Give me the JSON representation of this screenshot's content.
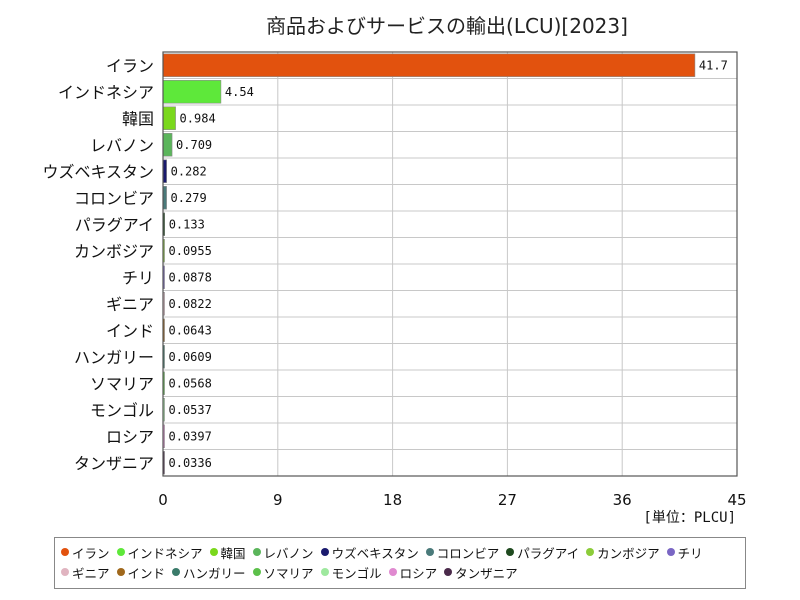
{
  "chart_data": {
    "type": "bar",
    "orientation": "horizontal",
    "title": "商品およびサービスの輸出(LCU)[2023]",
    "unit_label": "[単位：PLCU]",
    "categories": [
      "イラン",
      "インドネシア",
      "韓国",
      "レバノン",
      "ウズベキスタン",
      "コロンビア",
      "パラグアイ",
      "カンボジア",
      "チリ",
      "ギニア",
      "インド",
      "ハンガリー",
      "ソマリア",
      "モンゴル",
      "ロシア",
      "タンザニア"
    ],
    "values": [
      41.7,
      4.54,
      0.984,
      0.709,
      0.282,
      0.279,
      0.133,
      0.0955,
      0.0878,
      0.0822,
      0.0643,
      0.0609,
      0.0568,
      0.0537,
      0.0397,
      0.0336
    ],
    "value_labels": [
      "41.7",
      "4.54",
      "0.984",
      "0.709",
      "0.282",
      "0.279",
      "0.133",
      "0.0955",
      "0.0878",
      "0.0822",
      "0.0643",
      "0.0609",
      "0.0568",
      "0.0537",
      "0.0397",
      "0.0336"
    ],
    "colors": [
      "#e2520e",
      "#5ee83a",
      "#7ad81c",
      "#5bb55b",
      "#1a1a6e",
      "#4a7a7a",
      "#1f4a1f",
      "#8ccc3a",
      "#7a66c4",
      "#e0b4c0",
      "#a0681c",
      "#3a7a6a",
      "#5cc04a",
      "#9ee89e",
      "#e08ad0",
      "#4a2a4a"
    ],
    "xlim": [
      0,
      45
    ],
    "xticks": [
      "0",
      "9",
      "18",
      "27",
      "36",
      "45"
    ],
    "grid": true,
    "legend_position": "bottom"
  }
}
